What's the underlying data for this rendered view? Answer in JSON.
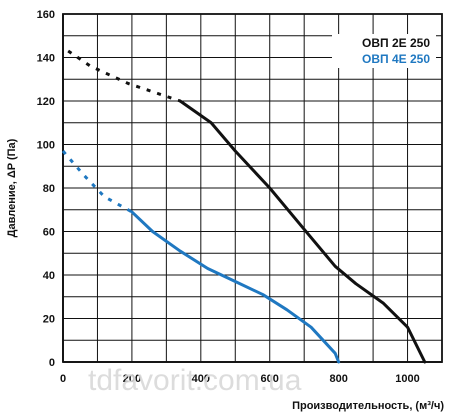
{
  "chart_data": {
    "type": "line",
    "xlabel": "Производительность, (м³/ч)",
    "ylabel": "Давление, ΔP (Па)",
    "xlim": [
      0,
      1100
    ],
    "ylim": [
      0,
      160
    ],
    "x_ticks": [
      0,
      200,
      400,
      600,
      800,
      1000
    ],
    "y_ticks": [
      0,
      20,
      40,
      60,
      80,
      100,
      120,
      140,
      160
    ],
    "grid": true,
    "legend_position": "top-right",
    "series": [
      {
        "name": "ОВП 2Е 250",
        "color": "#111111",
        "dashed_segment": [
          {
            "x": 15,
            "y": 143
          },
          {
            "x": 80,
            "y": 136
          },
          {
            "x": 190,
            "y": 128
          },
          {
            "x": 340,
            "y": 120
          }
        ],
        "solid_segment": [
          {
            "x": 340,
            "y": 120
          },
          {
            "x": 430,
            "y": 110
          },
          {
            "x": 500,
            "y": 97
          },
          {
            "x": 600,
            "y": 80
          },
          {
            "x": 700,
            "y": 61
          },
          {
            "x": 790,
            "y": 44
          },
          {
            "x": 850,
            "y": 36
          },
          {
            "x": 930,
            "y": 27
          },
          {
            "x": 1000,
            "y": 16
          },
          {
            "x": 1050,
            "y": 0
          }
        ]
      },
      {
        "name": "ОВП 4Е 250",
        "color": "#1f78c1",
        "dashed_segment": [
          {
            "x": 0,
            "y": 97
          },
          {
            "x": 60,
            "y": 86
          },
          {
            "x": 120,
            "y": 76
          },
          {
            "x": 200,
            "y": 69
          }
        ],
        "solid_segment": [
          {
            "x": 200,
            "y": 69
          },
          {
            "x": 260,
            "y": 60
          },
          {
            "x": 340,
            "y": 51
          },
          {
            "x": 420,
            "y": 43
          },
          {
            "x": 500,
            "y": 37
          },
          {
            "x": 580,
            "y": 31
          },
          {
            "x": 650,
            "y": 24
          },
          {
            "x": 720,
            "y": 16
          },
          {
            "x": 790,
            "y": 4
          },
          {
            "x": 800,
            "y": 0
          }
        ]
      }
    ]
  },
  "watermark": "tdfavorit.com.ua"
}
